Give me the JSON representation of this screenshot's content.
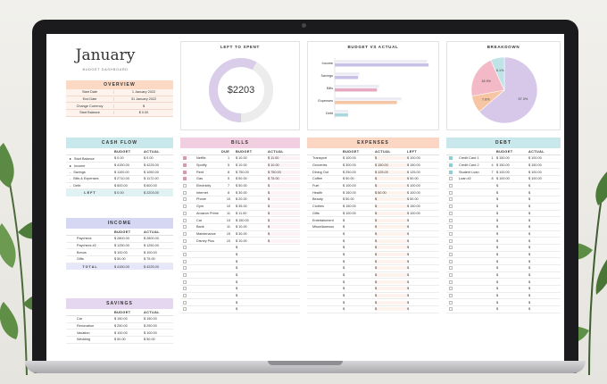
{
  "header": {
    "title": "January",
    "subtitle": "BUDGET DASHBOARD"
  },
  "overview": {
    "title": "OVERVIEW",
    "rows": [
      {
        "label": "Start Date",
        "value": "1 January 2022"
      },
      {
        "label": "End Date",
        "value": "31 January 2022"
      },
      {
        "label": "Change Currency",
        "value": "$"
      },
      {
        "label": "Start Balance",
        "value": "$ 0.00"
      }
    ]
  },
  "left_to_spent": {
    "title": "LEFT TO SPENT",
    "amount": "$2203",
    "spent_fraction": 0.58
  },
  "budget_vs_actual": {
    "title": "BUDGET VS ACTUAL",
    "bars": [
      {
        "label": "Income",
        "budget": 4150,
        "actual": 4225,
        "color": "#c9c0e8"
      },
      {
        "label": "Savings",
        "budget": 1100,
        "actual": 1050,
        "color": "#c9c0e8"
      },
      {
        "label": "Bills",
        "budget": 2000,
        "actual": 1900,
        "color": "#e7a9c2"
      },
      {
        "label": "Expenses",
        "budget": 3000,
        "actual": 2800,
        "color": "#f6c6a4"
      },
      {
        "label": "Debt",
        "budget": 600,
        "actual": 600,
        "color": "#a8d8dc"
      }
    ]
  },
  "breakdown": {
    "title": "BREAKDOWN",
    "slices": [
      {
        "label": "57.3%",
        "value": 57.3,
        "color": "#d7c8ea"
      },
      {
        "label": "7.6%",
        "value": 7.6,
        "color": "#f6c6a4"
      },
      {
        "label": "18.9%",
        "value": 18.9,
        "color": "#f4b9c6"
      },
      {
        "label": "6.1%",
        "value": 6.1,
        "color": "#bfe3e6"
      }
    ]
  },
  "cashflow": {
    "title": "CASH FLOW",
    "cols": [
      "BUDGET",
      "ACTUAL"
    ],
    "rows": [
      {
        "dot": "▸",
        "label": "Start Balance",
        "budget": "0.00",
        "actual": "0.00"
      },
      {
        "dot": "▸",
        "label": "Income",
        "budget": "4150.00",
        "actual": "4225.00"
      },
      {
        "dot": "-",
        "label": "Savings",
        "budget": "1100.00",
        "actual": "1050.00"
      },
      {
        "dot": "-",
        "label": "Bills & Expenses",
        "budget": "2710.00",
        "actual": "1172.00"
      },
      {
        "dot": "-",
        "label": "Debt",
        "budget": "600.00",
        "actual": "600.00"
      }
    ],
    "total": {
      "label": "LEFT",
      "budget": "0.00",
      "actual": "2203.00"
    }
  },
  "income": {
    "title": "INCOME",
    "cols": [
      "BUDGET",
      "ACTUAL"
    ],
    "rows": [
      {
        "label": "Paycheck",
        "budget": "2800.00",
        "actual": "2800.00"
      },
      {
        "label": "Paycheck #2",
        "budget": "1250.00",
        "actual": "1250.00"
      },
      {
        "label": "Bonus",
        "budget": "100.00",
        "actual": "100.00"
      },
      {
        "label": "Gifts",
        "budget": "50.00",
        "actual": "75.00"
      }
    ],
    "total": {
      "label": "TOTAL",
      "budget": "4150.00",
      "actual": "4225.00"
    }
  },
  "savings": {
    "title": "SAVINGS",
    "cols": [
      "BUDGET",
      "ACTUAL"
    ],
    "rows": [
      {
        "label": "Car",
        "budget": "150.00",
        "actual": "150.00"
      },
      {
        "label": "Renovation",
        "budget": "250.00",
        "actual": "250.00"
      },
      {
        "label": "Vacation",
        "budget": "100.00",
        "actual": "100.00"
      },
      {
        "label": "Wedding",
        "budget": "50.00",
        "actual": "50.00"
      }
    ]
  },
  "bills": {
    "title": "BILLS",
    "cols": [
      "DUE",
      "BUDGET",
      "ACTUAL"
    ],
    "rows": [
      {
        "check": true,
        "label": "Netflix",
        "due": "1",
        "budget": "10.00",
        "actual": "11.00"
      },
      {
        "check": true,
        "label": "Spotify",
        "due": "5",
        "budget": "10.00",
        "actual": "10.00"
      },
      {
        "check": true,
        "label": "Rent",
        "due": "8",
        "budget": "750.00",
        "actual": "750.00"
      },
      {
        "check": true,
        "label": "Gas",
        "due": "5",
        "budget": "50.00",
        "actual": "75.00"
      },
      {
        "check": false,
        "label": "Electricity",
        "due": "7",
        "budget": "50.00",
        "actual": ""
      },
      {
        "check": false,
        "label": "Internet",
        "due": "8",
        "budget": "30.00",
        "actual": ""
      },
      {
        "check": false,
        "label": "Phone",
        "due": "10",
        "budget": "20.00",
        "actual": ""
      },
      {
        "check": false,
        "label": "Gym",
        "due": "10",
        "budget": "35.00",
        "actual": ""
      },
      {
        "check": false,
        "label": "Amazon Prime",
        "due": "11",
        "budget": "11.00",
        "actual": ""
      },
      {
        "check": false,
        "label": "Car",
        "due": "13",
        "budget": "150.00",
        "actual": ""
      },
      {
        "check": false,
        "label": "Bank",
        "due": "11",
        "budget": "10.00",
        "actual": ""
      },
      {
        "check": false,
        "label": "Maintenance",
        "due": "15",
        "budget": "30.00",
        "actual": ""
      },
      {
        "check": false,
        "label": "Disney Plus",
        "due": "10",
        "budget": "10.00",
        "actual": ""
      }
    ],
    "empty_rows": 10,
    "currency": "$"
  },
  "expenses": {
    "title": "EXPENSES",
    "cols": [
      "BUDGET",
      "ACTUAL",
      "LEFT"
    ],
    "rows": [
      {
        "label": "Transport",
        "budget": "100.00",
        "actual": "",
        "left": "100.00"
      },
      {
        "label": "Groceries",
        "budget": "300.00",
        "actual": "150.00",
        "left": "150.00"
      },
      {
        "label": "Dining Out",
        "budget": "250.00",
        "actual": "125.00",
        "left": "125.00"
      },
      {
        "label": "Coffee",
        "budget": "50.00",
        "actual": "",
        "left": "50.00"
      },
      {
        "label": "Fuel",
        "budget": "100.00",
        "actual": "",
        "left": "100.00"
      },
      {
        "label": "Health",
        "budget": "150.00",
        "actual": "50.00",
        "left": "100.00"
      },
      {
        "label": "Beauty",
        "budget": "50.00",
        "actual": "",
        "left": "50.00"
      },
      {
        "label": "Clothes",
        "budget": "150.00",
        "actual": "",
        "left": "150.00"
      },
      {
        "label": "Gifts",
        "budget": "100.00",
        "actual": "",
        "left": "100.00"
      },
      {
        "label": "Entertainment",
        "budget": "",
        "actual": "",
        "left": ""
      },
      {
        "label": "Miscellaneous",
        "budget": "",
        "actual": "",
        "left": ""
      }
    ],
    "empty_rows": 12,
    "currency": "$"
  },
  "debt": {
    "title": "DEBT",
    "cols": [
      "BUDGET",
      "ACTUAL"
    ],
    "rows": [
      {
        "check": true,
        "label": "Credit Card 1",
        "due": "1",
        "budget": "150.00",
        "actual": "100.00"
      },
      {
        "check": true,
        "label": "Credit Card 2",
        "due": "4",
        "budget": "150.00",
        "actual": "150.00"
      },
      {
        "check": true,
        "label": "Student Loan",
        "due": "7",
        "budget": "100.00",
        "actual": "100.00"
      },
      {
        "check": false,
        "label": "Loan #2",
        "due": "8",
        "budget": "100.00",
        "actual": "100.00"
      }
    ],
    "empty_rows": 19,
    "currency": "$"
  }
}
